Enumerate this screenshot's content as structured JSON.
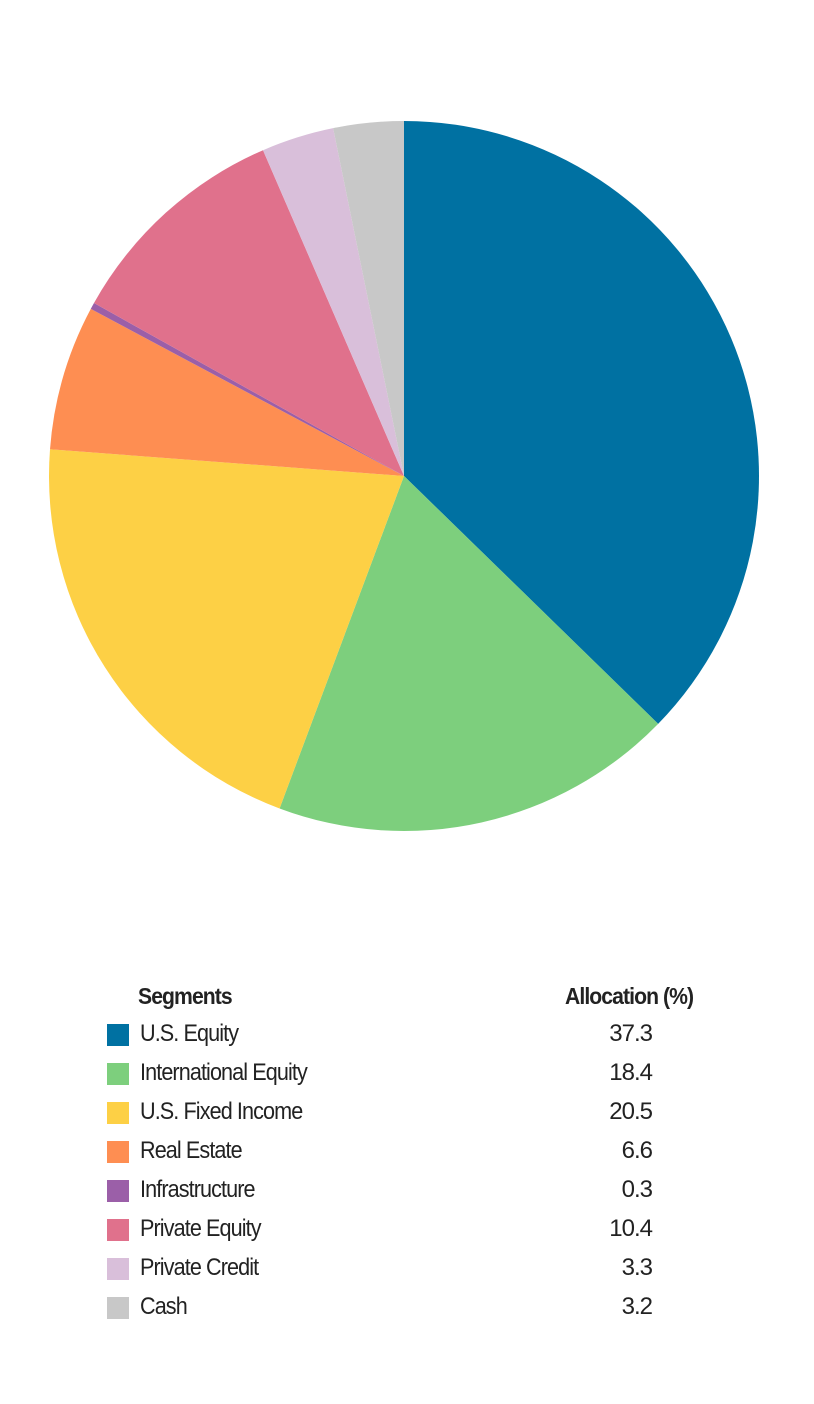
{
  "chart_data": {
    "type": "pie",
    "title": "",
    "start_angle": "12 o'clock",
    "direction": "clockwise",
    "legend_header": {
      "segments": "Segments",
      "allocation": "Allocation (%)"
    },
    "legend_placement": "bottom",
    "slices": [
      {
        "label": "U.S. Equity",
        "value": 37.3,
        "display": "37.3",
        "color": "#0071A2"
      },
      {
        "label": "International Equity",
        "value": 18.4,
        "display": "18.4",
        "color": "#7DCF7D"
      },
      {
        "label": "U.S. Fixed Income",
        "value": 20.5,
        "display": "20.5",
        "color": "#FDD045"
      },
      {
        "label": "Real Estate",
        "value": 6.6,
        "display": "6.6",
        "color": "#FE8E52"
      },
      {
        "label": "Infrastructure",
        "value": 0.3,
        "display": "0.3",
        "color": "#9B5FA8"
      },
      {
        "label": "Private Equity",
        "value": 10.4,
        "display": "10.4",
        "color": "#E0718C"
      },
      {
        "label": "Private Credit",
        "value": 3.3,
        "display": "3.3",
        "color": "#D9BFDA"
      },
      {
        "label": "Cash",
        "value": 3.2,
        "display": "3.2",
        "color": "#C8C8C8"
      }
    ]
  }
}
